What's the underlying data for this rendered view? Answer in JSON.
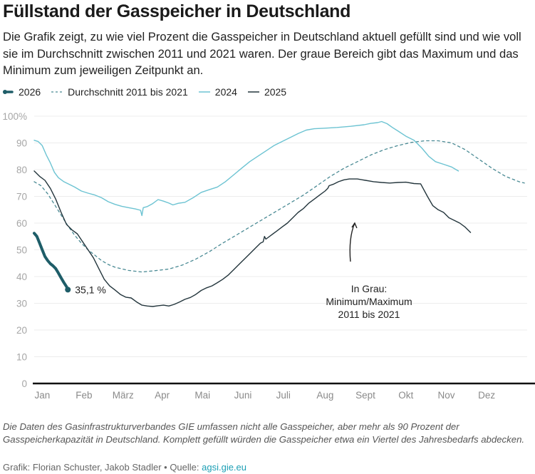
{
  "header": {
    "title": "Füllstand der Gasspeicher in Deutschland",
    "subtitle": "Die Grafik zeigt, zu wie viel Prozent die Gasspeicher in Deutschland aktuell gefüllt sind und wie voll sie im Durchschnitt zwischen 2011 und 2021 waren. Der graue Bereich gibt das Maximum und das Minimum zum jeweiligen Zeitpunkt an."
  },
  "footer": {
    "note": "Die Daten des Gasinfrastrukturverbandes GIE umfassen nicht alle Gasspeicher, aber mehr als 90 Prozent der Gasspeicherkapazität in Deutschland. Komplett gefüllt würden die Gasspeicher etwa ein Viertel des Jahresbedarfs abdecken.",
    "credit": "Grafik: Florian Schuster, Jakob Stadler",
    "separator": " • Quelle: ",
    "source_link": "agsi.gie.eu"
  },
  "chart_data": {
    "type": "line",
    "title": "Füllstand der Gasspeicher in Deutschland",
    "xlabel": "",
    "ylabel": "",
    "x_unit": "day of year",
    "xlim": [
      0,
      365
    ],
    "ylim": [
      0,
      100
    ],
    "grid": true,
    "legend_position": "top-left",
    "y_ticks": [
      {
        "value": 0,
        "label": "0"
      },
      {
        "value": 10,
        "label": "10"
      },
      {
        "value": 20,
        "label": "20"
      },
      {
        "value": 30,
        "label": "30"
      },
      {
        "value": 40,
        "label": "40"
      },
      {
        "value": 50,
        "label": "50"
      },
      {
        "value": 60,
        "label": "60"
      },
      {
        "value": 70,
        "label": "70"
      },
      {
        "value": 80,
        "label": "80"
      },
      {
        "value": 90,
        "label": "90"
      },
      {
        "value": 100,
        "label": "100%"
      }
    ],
    "x_ticks": [
      {
        "value": 6,
        "label": "Jan"
      },
      {
        "value": 37,
        "label": "Feb"
      },
      {
        "value": 66,
        "label": "März"
      },
      {
        "value": 95,
        "label": "Apr"
      },
      {
        "value": 125,
        "label": "Mai"
      },
      {
        "value": 155,
        "label": "Juni"
      },
      {
        "value": 185,
        "label": "Juli"
      },
      {
        "value": 216,
        "label": "Aug"
      },
      {
        "value": 246,
        "label": "Sept"
      },
      {
        "value": 276,
        "label": "Okt"
      },
      {
        "value": 306,
        "label": "Nov"
      },
      {
        "value": 336,
        "label": "Dez"
      }
    ],
    "series": [
      {
        "name": "Durchschnitt 2011 bis 2021",
        "color": "#4a8a94",
        "style": "dashed",
        "points": [
          [
            0,
            75.5
          ],
          [
            5,
            74
          ],
          [
            10,
            71
          ],
          [
            15,
            67
          ],
          [
            20,
            63
          ],
          [
            25,
            59
          ],
          [
            30,
            55.5
          ],
          [
            35,
            52.5
          ],
          [
            40,
            50
          ],
          [
            45,
            48
          ],
          [
            50,
            46
          ],
          [
            55,
            44.5
          ],
          [
            60,
            43.5
          ],
          [
            70,
            42.3
          ],
          [
            80,
            41.7
          ],
          [
            90,
            42.2
          ],
          [
            100,
            42.8
          ],
          [
            110,
            44.3
          ],
          [
            120,
            46.5
          ],
          [
            130,
            49.3
          ],
          [
            140,
            52.5
          ],
          [
            150,
            55.5
          ],
          [
            160,
            58.5
          ],
          [
            170,
            61.5
          ],
          [
            180,
            64.5
          ],
          [
            190,
            67.5
          ],
          [
            200,
            70.5
          ],
          [
            210,
            74
          ],
          [
            220,
            77.5
          ],
          [
            230,
            80.5
          ],
          [
            240,
            83
          ],
          [
            250,
            85.5
          ],
          [
            260,
            87.5
          ],
          [
            270,
            89
          ],
          [
            280,
            90.2
          ],
          [
            290,
            90.8
          ],
          [
            300,
            90.8
          ],
          [
            310,
            90
          ],
          [
            320,
            87.5
          ],
          [
            330,
            84
          ],
          [
            340,
            80.5
          ],
          [
            350,
            77.5
          ],
          [
            360,
            75.5
          ],
          [
            364,
            75
          ]
        ]
      },
      {
        "name": "2024",
        "color": "#6cc3d2",
        "style": "solid",
        "points": [
          [
            0,
            91
          ],
          [
            3,
            90.5
          ],
          [
            6,
            89
          ],
          [
            9,
            85.5
          ],
          [
            12,
            82.5
          ],
          [
            15,
            79
          ],
          [
            18,
            77
          ],
          [
            22,
            75.5
          ],
          [
            26,
            74.5
          ],
          [
            30,
            73.5
          ],
          [
            35,
            72
          ],
          [
            40,
            71.2
          ],
          [
            45,
            70.5
          ],
          [
            50,
            69.5
          ],
          [
            55,
            68
          ],
          [
            60,
            67
          ],
          [
            65,
            66.3
          ],
          [
            70,
            65.8
          ],
          [
            75,
            65.3
          ],
          [
            79,
            64.8
          ],
          [
            80,
            62.8
          ],
          [
            81,
            65.8
          ],
          [
            84,
            66.2
          ],
          [
            88,
            67.3
          ],
          [
            92,
            68.8
          ],
          [
            96,
            68.2
          ],
          [
            100,
            67.5
          ],
          [
            103,
            66.8
          ],
          [
            107,
            67.4
          ],
          [
            112,
            67.8
          ],
          [
            118,
            69.5
          ],
          [
            124,
            71.5
          ],
          [
            130,
            72.5
          ],
          [
            136,
            73.5
          ],
          [
            142,
            75.5
          ],
          [
            148,
            78
          ],
          [
            154,
            80.5
          ],
          [
            160,
            83
          ],
          [
            166,
            85
          ],
          [
            172,
            87
          ],
          [
            178,
            89
          ],
          [
            184,
            90.5
          ],
          [
            190,
            92
          ],
          [
            196,
            93.5
          ],
          [
            202,
            94.8
          ],
          [
            208,
            95.3
          ],
          [
            215,
            95.5
          ],
          [
            225,
            95.8
          ],
          [
            235,
            96.2
          ],
          [
            245,
            96.8
          ],
          [
            250,
            97.3
          ],
          [
            255,
            97.6
          ],
          [
            258,
            98
          ],
          [
            262,
            97.2
          ],
          [
            266,
            95.8
          ],
          [
            270,
            94.5
          ],
          [
            276,
            92.5
          ],
          [
            282,
            91
          ],
          [
            288,
            88
          ],
          [
            293,
            85
          ],
          [
            298,
            83
          ],
          [
            304,
            82
          ],
          [
            310,
            81
          ],
          [
            315,
            79.5
          ]
        ]
      },
      {
        "name": "2025",
        "color": "#23353c",
        "style": "solid",
        "points": [
          [
            0,
            79.5
          ],
          [
            4,
            77.5
          ],
          [
            8,
            76
          ],
          [
            12,
            73
          ],
          [
            16,
            69
          ],
          [
            20,
            64
          ],
          [
            24,
            59.5
          ],
          [
            28,
            57.5
          ],
          [
            32,
            56
          ],
          [
            36,
            53
          ],
          [
            40,
            50
          ],
          [
            44,
            47
          ],
          [
            48,
            43
          ],
          [
            52,
            39
          ],
          [
            56,
            36.5
          ],
          [
            60,
            35
          ],
          [
            64,
            33.3
          ],
          [
            68,
            32.3
          ],
          [
            72,
            32
          ],
          [
            76,
            30.5
          ],
          [
            80,
            29.3
          ],
          [
            84,
            29
          ],
          [
            88,
            28.8
          ],
          [
            92,
            29.1
          ],
          [
            96,
            29.3
          ],
          [
            100,
            29
          ],
          [
            104,
            29.6
          ],
          [
            108,
            30.5
          ],
          [
            112,
            31.5
          ],
          [
            116,
            32.2
          ],
          [
            120,
            33.3
          ],
          [
            124,
            34.8
          ],
          [
            128,
            35.8
          ],
          [
            132,
            36.5
          ],
          [
            136,
            37.7
          ],
          [
            140,
            39
          ],
          [
            144,
            40.5
          ],
          [
            148,
            42.5
          ],
          [
            152,
            44.5
          ],
          [
            156,
            46.5
          ],
          [
            160,
            48.5
          ],
          [
            164,
            50.5
          ],
          [
            168,
            52.5
          ],
          [
            170,
            53
          ],
          [
            171,
            55
          ],
          [
            172,
            54
          ],
          [
            176,
            55.5
          ],
          [
            180,
            57
          ],
          [
            184,
            58.5
          ],
          [
            188,
            60
          ],
          [
            192,
            62
          ],
          [
            196,
            64
          ],
          [
            200,
            65.5
          ],
          [
            204,
            67.5
          ],
          [
            208,
            69
          ],
          [
            212,
            70.5
          ],
          [
            216,
            72
          ],
          [
            218,
            73
          ],
          [
            219,
            74
          ],
          [
            222,
            74.5
          ],
          [
            226,
            75.5
          ],
          [
            230,
            76.2
          ],
          [
            234,
            76.5
          ],
          [
            240,
            76.5
          ],
          [
            246,
            76
          ],
          [
            252,
            75.5
          ],
          [
            258,
            75.2
          ],
          [
            264,
            75
          ],
          [
            270,
            75.2
          ],
          [
            276,
            75.3
          ],
          [
            282,
            74.8
          ],
          [
            287,
            74.7
          ],
          [
            292,
            70
          ],
          [
            296,
            66.5
          ],
          [
            300,
            65
          ],
          [
            304,
            64
          ],
          [
            308,
            62
          ],
          [
            312,
            61
          ],
          [
            316,
            60
          ],
          [
            320,
            58.5
          ],
          [
            324,
            56.5
          ]
        ]
      },
      {
        "name": "2026",
        "color": "#1e5d68",
        "style": "thick",
        "points": [
          [
            0,
            56.2
          ],
          [
            2,
            55
          ],
          [
            4,
            52.5
          ],
          [
            6,
            50
          ],
          [
            8,
            47.5
          ],
          [
            10,
            46
          ],
          [
            12,
            44.8
          ],
          [
            14,
            44
          ],
          [
            16,
            43
          ],
          [
            18,
            41.3
          ],
          [
            20,
            39.5
          ],
          [
            22,
            37.8
          ],
          [
            24,
            36.2
          ],
          [
            25,
            35.1
          ]
        ],
        "end_label": "35,1 %"
      }
    ],
    "annotations": [
      {
        "text_lines": [
          "In Grau:",
          "Minimum/Maximum",
          "2011 bis 2021"
        ],
        "type": "arrow-callout",
        "points_to_value": [
          238,
          60
        ]
      }
    ]
  }
}
